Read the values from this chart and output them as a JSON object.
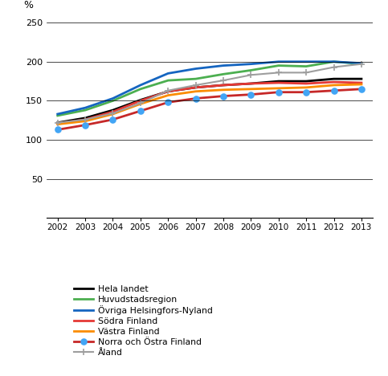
{
  "years": [
    2002,
    2003,
    2004,
    2005,
    2006,
    2007,
    2008,
    2009,
    2010,
    2011,
    2012,
    2013
  ],
  "series": [
    {
      "name": "Hela landet",
      "values": [
        122,
        128,
        138,
        151,
        162,
        167,
        170,
        172,
        175,
        175,
        178,
        178
      ],
      "color": "#000000",
      "linewidth": 2.0,
      "marker": null,
      "linestyle": "-"
    },
    {
      "name": "Huvudstadsregion",
      "values": [
        131,
        138,
        150,
        165,
        176,
        178,
        184,
        189,
        195,
        194,
        200,
        197
      ],
      "color": "#4caf50",
      "linewidth": 2.0,
      "marker": null,
      "linestyle": "-"
    },
    {
      "name": "Övriga Helsingfors-Nyland",
      "values": [
        133,
        141,
        153,
        170,
        185,
        191,
        195,
        197,
        200,
        200,
        200,
        198
      ],
      "color": "#1565c0",
      "linewidth": 2.0,
      "marker": null,
      "linestyle": "-"
    },
    {
      "name": "Södra Finland",
      "values": [
        121,
        126,
        136,
        150,
        162,
        167,
        170,
        172,
        173,
        172,
        174,
        173
      ],
      "color": "#e53935",
      "linewidth": 2.0,
      "marker": null,
      "linestyle": "-"
    },
    {
      "name": "Västra Finland",
      "values": [
        120,
        124,
        133,
        146,
        157,
        162,
        164,
        165,
        166,
        167,
        170,
        171
      ],
      "color": "#fb8c00",
      "linewidth": 2.0,
      "marker": null,
      "linestyle": "-"
    },
    {
      "name": "Norra och Östra Finland",
      "values": [
        113,
        119,
        126,
        137,
        148,
        153,
        156,
        158,
        161,
        161,
        163,
        165
      ],
      "color": "#c62828",
      "linewidth": 2.0,
      "marker": "o",
      "markersize": 5,
      "markerfacecolor": "#42a5f5",
      "markeredgecolor": "#42a5f5",
      "linestyle": "-"
    },
    {
      "name": "Åland",
      "values": [
        122,
        126,
        134,
        147,
        163,
        170,
        176,
        183,
        186,
        186,
        193,
        197
      ],
      "color": "#9e9e9e",
      "linewidth": 1.5,
      "marker": "+",
      "markersize": 6,
      "markerfacecolor": "#9e9e9e",
      "markeredgecolor": "#9e9e9e",
      "linestyle": "-"
    }
  ],
  "ylabel": "%",
  "ylim": [
    0,
    250
  ],
  "yticks": [
    0,
    50,
    100,
    150,
    200,
    250
  ],
  "xlim": [
    2001.6,
    2013.4
  ],
  "xticks": [
    2002,
    2003,
    2004,
    2005,
    2006,
    2007,
    2008,
    2009,
    2010,
    2011,
    2012,
    2013
  ],
  "background_color": "#ffffff",
  "grid_color": "#000000"
}
